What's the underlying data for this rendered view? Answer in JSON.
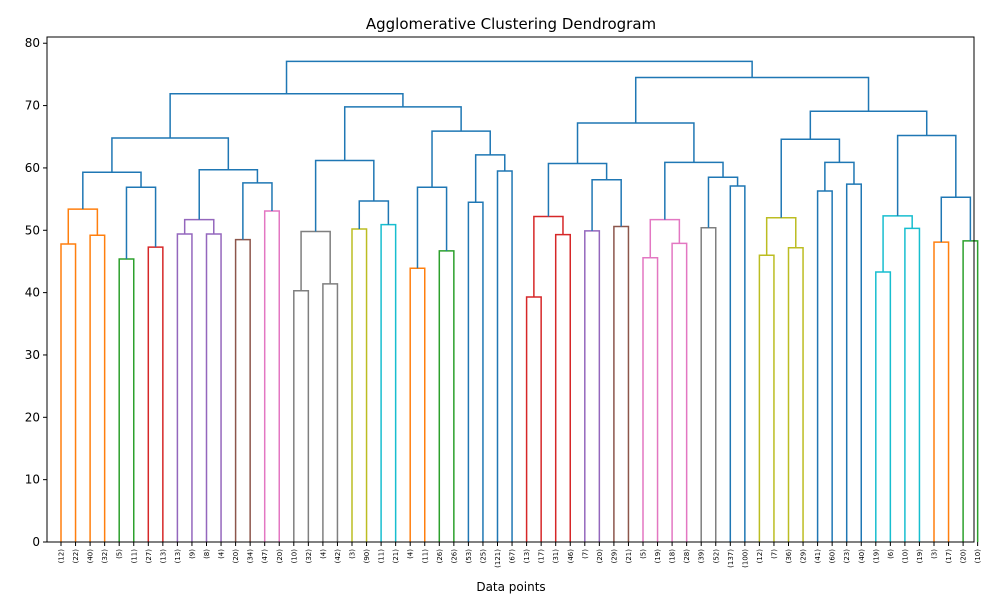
{
  "chart_data": {
    "type": "dendrogram",
    "title": "Agglomerative Clustering Dendrogram",
    "xlabel": "Data points",
    "ylabel": "",
    "ylim": [
      0,
      81
    ],
    "yticks": [
      0,
      10,
      20,
      30,
      40,
      50,
      60,
      70,
      80
    ],
    "grid": false,
    "colors": {
      "orange": "#ff7f0e",
      "green": "#2ca02c",
      "red": "#d62728",
      "purple": "#9467bd",
      "brown": "#8c564b",
      "pink": "#e377c2",
      "gray": "#7f7f7f",
      "olive": "#bcbd22",
      "cyan": "#17becf",
      "blue": "#1f77b4"
    },
    "leaf_labels": [
      "(12)",
      "(22)",
      "(40)",
      "(32)",
      "(5)",
      "(11)",
      "(27)",
      "(13)",
      "(13)",
      "(9)",
      "(8)",
      "(4)",
      "(20)",
      "(34)",
      "(47)",
      "(20)",
      "(10)",
      "(32)",
      "(4)",
      "(42)",
      "(3)",
      "(90)",
      "(11)",
      "(21)",
      "(4)",
      "(11)",
      "(26)",
      "(26)",
      "(53)",
      "(25)",
      "(121)",
      "(67)",
      "(13)",
      "(17)",
      "(31)",
      "(46)",
      "(7)",
      "(20)",
      "(29)",
      "(21)",
      "(5)",
      "(19)",
      "(18)",
      "(28)",
      "(39)",
      "(52)",
      "(137)",
      "(100)",
      "(12)",
      "(7)",
      "(36)",
      "(29)",
      "(41)",
      "(60)",
      "(23)",
      "(40)",
      "(19)",
      "(6)",
      "(10)",
      "(19)",
      "(3)",
      "(17)",
      "(20)",
      "(10)"
    ],
    "merges": [
      {
        "id": "A1",
        "left": "L0",
        "right": "L1",
        "height": 47.8,
        "color": "orange"
      },
      {
        "id": "A2",
        "left": "L2",
        "right": "L3",
        "height": 49.2,
        "color": "orange"
      },
      {
        "id": "A",
        "left": "A1",
        "right": "A2",
        "height": 53.4,
        "color": "orange"
      },
      {
        "id": "B",
        "left": "L4",
        "right": "L5",
        "height": 45.4,
        "color": "green"
      },
      {
        "id": "C",
        "left": "L6",
        "right": "L7",
        "height": 47.3,
        "color": "red"
      },
      {
        "id": "BC",
        "left": "B",
        "right": "C",
        "height": 56.9,
        "color": "blue"
      },
      {
        "id": "ABC",
        "left": "A",
        "right": "BC",
        "height": 59.3,
        "color": "blue"
      },
      {
        "id": "D1",
        "left": "L8",
        "right": "L9",
        "height": 49.4,
        "color": "purple"
      },
      {
        "id": "D2",
        "left": "L10",
        "right": "L11",
        "height": 49.4,
        "color": "purple"
      },
      {
        "id": "D",
        "left": "D1",
        "right": "D2",
        "height": 51.7,
        "color": "purple"
      },
      {
        "id": "E",
        "left": "L12",
        "right": "L13",
        "height": 48.5,
        "color": "brown"
      },
      {
        "id": "F",
        "left": "L14",
        "right": "L15",
        "height": 53.1,
        "color": "pink"
      },
      {
        "id": "EF",
        "left": "E",
        "right": "F",
        "height": 57.6,
        "color": "blue"
      },
      {
        "id": "DEF",
        "left": "D",
        "right": "EF",
        "height": 59.7,
        "color": "blue"
      },
      {
        "id": "G0",
        "left": "ABC",
        "right": "DEF",
        "height": 64.8,
        "color": "blue"
      },
      {
        "id": "H1",
        "left": "L16",
        "right": "L17",
        "height": 40.3,
        "color": "gray"
      },
      {
        "id": "H2",
        "left": "L18",
        "right": "L19",
        "height": 41.4,
        "color": "gray"
      },
      {
        "id": "H",
        "left": "H1",
        "right": "H2",
        "height": 49.8,
        "color": "gray"
      },
      {
        "id": "I",
        "left": "L20",
        "right": "L21",
        "height": 50.2,
        "color": "olive"
      },
      {
        "id": "J",
        "left": "L22",
        "right": "L23",
        "height": 50.9,
        "color": "cyan"
      },
      {
        "id": "IJ",
        "left": "I",
        "right": "J",
        "height": 54.7,
        "color": "blue"
      },
      {
        "id": "HIJ",
        "left": "H",
        "right": "IJ",
        "height": 61.2,
        "color": "blue"
      },
      {
        "id": "K",
        "left": "L24",
        "right": "L25",
        "height": 43.9,
        "color": "orange"
      },
      {
        "id": "M",
        "left": "L26",
        "right": "L27",
        "height": 46.7,
        "color": "green"
      },
      {
        "id": "KM",
        "left": "K",
        "right": "M",
        "height": 56.9,
        "color": "blue"
      },
      {
        "id": "N",
        "left": "L28",
        "right": "L29",
        "height": 54.5,
        "color": "blue"
      },
      {
        "id": "P",
        "left": "L30",
        "right": "L31",
        "height": 59.5,
        "color": "blue"
      },
      {
        "id": "NP",
        "left": "N",
        "right": "P",
        "height": 62.1,
        "color": "blue"
      },
      {
        "id": "KMNP",
        "left": "KM",
        "right": "NP",
        "height": 65.9,
        "color": "blue"
      },
      {
        "id": "Q",
        "left": "HIJ",
        "right": "KMNP",
        "height": 69.8,
        "color": "blue"
      },
      {
        "id": "LEFT",
        "left": "G0",
        "right": "Q",
        "height": 71.9,
        "color": "blue"
      },
      {
        "id": "R1",
        "left": "L32",
        "right": "L33",
        "height": 39.3,
        "color": "red"
      },
      {
        "id": "R2",
        "left": "L34",
        "right": "L35",
        "height": 49.3,
        "color": "red"
      },
      {
        "id": "R",
        "left": "R1",
        "right": "R2",
        "height": 52.2,
        "color": "red"
      },
      {
        "id": "S",
        "left": "L36",
        "right": "L37",
        "height": 49.9,
        "color": "purple"
      },
      {
        "id": "T",
        "left": "L38",
        "right": "L39",
        "height": 50.6,
        "color": "brown"
      },
      {
        "id": "ST",
        "left": "S",
        "right": "T",
        "height": 58.1,
        "color": "blue"
      },
      {
        "id": "RST",
        "left": "R",
        "right": "ST",
        "height": 60.7,
        "color": "blue"
      },
      {
        "id": "U1",
        "left": "L40",
        "right": "L41",
        "height": 45.6,
        "color": "pink"
      },
      {
        "id": "U2",
        "left": "L42",
        "right": "L43",
        "height": 47.9,
        "color": "pink"
      },
      {
        "id": "U",
        "left": "U1",
        "right": "U2",
        "height": 51.7,
        "color": "pink"
      },
      {
        "id": "V",
        "left": "L44",
        "right": "L45",
        "height": 50.4,
        "color": "gray"
      },
      {
        "id": "W",
        "left": "L46",
        "right": "L47",
        "height": 57.1,
        "color": "blue"
      },
      {
        "id": "VW",
        "left": "V",
        "right": "W",
        "height": 58.5,
        "color": "blue"
      },
      {
        "id": "UVW",
        "left": "U",
        "right": "VW",
        "height": 60.9,
        "color": "blue"
      },
      {
        "id": "X",
        "left": "RST",
        "right": "UVW",
        "height": 67.2,
        "color": "blue"
      },
      {
        "id": "Y1",
        "left": "L48",
        "right": "L49",
        "height": 46.0,
        "color": "olive"
      },
      {
        "id": "Y2",
        "left": "L50",
        "right": "L51",
        "height": 47.2,
        "color": "olive"
      },
      {
        "id": "Y",
        "left": "Y1",
        "right": "Y2",
        "height": 52.0,
        "color": "olive"
      },
      {
        "id": "Z1",
        "left": "L52",
        "right": "L53",
        "height": 56.3,
        "color": "blue"
      },
      {
        "id": "Z2",
        "left": "L54",
        "right": "L55",
        "height": 57.4,
        "color": "blue"
      },
      {
        "id": "Z",
        "left": "Z1",
        "right": "Z2",
        "height": 60.9,
        "color": "blue"
      },
      {
        "id": "YZ",
        "left": "Y",
        "right": "Z",
        "height": 64.6,
        "color": "blue"
      },
      {
        "id": "AA1",
        "left": "L56",
        "right": "L57",
        "height": 43.3,
        "color": "cyan"
      },
      {
        "id": "AA2",
        "left": "L58",
        "right": "L59",
        "height": 50.3,
        "color": "cyan"
      },
      {
        "id": "AA",
        "left": "AA1",
        "right": "AA2",
        "height": 52.3,
        "color": "cyan"
      },
      {
        "id": "BB",
        "left": "L60",
        "right": "L61",
        "height": 48.1,
        "color": "orange"
      },
      {
        "id": "CC",
        "left": "L62",
        "right": "L63",
        "height": 48.3,
        "color": "green"
      },
      {
        "id": "BBCC",
        "left": "BB",
        "right": "CC",
        "height": 55.3,
        "color": "blue"
      },
      {
        "id": "AABBCC",
        "left": "AA",
        "right": "BBCC",
        "height": 65.2,
        "color": "blue"
      },
      {
        "id": "DD",
        "left": "YZ",
        "right": "AABBCC",
        "height": 69.1,
        "color": "blue"
      },
      {
        "id": "RIGHT",
        "left": "X",
        "right": "DD",
        "height": 74.5,
        "color": "blue"
      },
      {
        "id": "ROOT",
        "left": "LEFT",
        "right": "RIGHT",
        "height": 77.1,
        "color": "blue"
      }
    ]
  }
}
